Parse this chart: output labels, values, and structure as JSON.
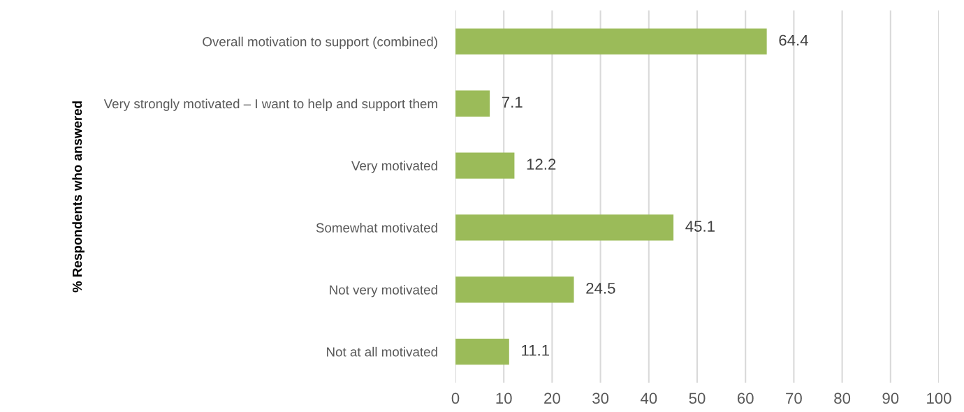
{
  "chart_data": {
    "type": "bar",
    "orientation": "horizontal",
    "ylabel": "% Respondents who answered",
    "categories": [
      "Overall motivation to support (combined)",
      "Very strongly motivated – I want to help and support them",
      "Very motivated",
      "Somewhat motivated",
      "Not very motivated",
      "Not at all motivated"
    ],
    "values": [
      64.4,
      7.1,
      12.2,
      45.1,
      24.5,
      11.1
    ],
    "color": "#9bbb59",
    "xlim": [
      0,
      100
    ],
    "xticks": [
      0,
      10,
      20,
      30,
      40,
      50,
      60,
      70,
      80,
      90,
      100
    ],
    "grid": "x",
    "data_labels": true,
    "legend": false
  }
}
